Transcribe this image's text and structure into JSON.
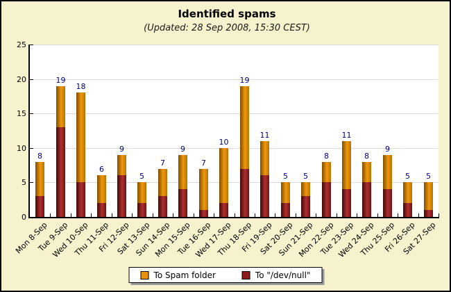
{
  "title": "Identified spams",
  "subtitle": "(Updated: 28 Sep 2008, 15:30 CEST)",
  "legend": {
    "items": [
      {
        "label": "To Spam folder",
        "swatch_color": "#E8910C"
      },
      {
        "label": "To \"/dev/null\"",
        "swatch_color": "#8E1B1B"
      }
    ]
  },
  "colors": {
    "background": "#F5F2CD",
    "plot_background": "#FFFFFF",
    "gridline": "#D9D9D9",
    "axis": "#000000",
    "value_label": "#000080",
    "spam_folder_bar": "#E8910C",
    "devnull_bar": "#8E1B1B"
  },
  "chart_data": {
    "type": "bar",
    "stacked": true,
    "title": "Identified spams",
    "subtitle": "(Updated: 28 Sep 2008, 15:30 CEST)",
    "xlabel": "",
    "ylabel": "",
    "ylim": [
      0,
      25
    ],
    "yticks": [
      0,
      5,
      10,
      15,
      20,
      25
    ],
    "grid": "horizontal",
    "legend_position": "bottom",
    "categories": [
      "Mon 8-Sep",
      "Tue 9-Sep",
      "Wed 10-Sep",
      "Thu 11-Sep",
      "Fri 12-Sep",
      "Sat 13-Sep",
      "Sun 14-Sep",
      "Mon 15-Sep",
      "Tue 16-Sep",
      "Wed 17-Sep",
      "Thu 18-Sep",
      "Fri 19-Sep",
      "Sat 20-Sep",
      "Sun 21-Sep",
      "Mon 22-Sep",
      "Tue 23-Sep",
      "Wed 24-Sep",
      "Thu 25-Sep",
      "Fri 26-Sep",
      "Sat 27-Sep"
    ],
    "series": [
      {
        "name": "To \"/dev/null\"",
        "values": [
          3,
          13,
          5,
          2,
          6,
          2,
          3,
          4,
          1,
          2,
          7,
          6,
          2,
          3,
          5,
          4,
          5,
          4,
          2,
          1
        ]
      },
      {
        "name": "To Spam folder",
        "values": [
          5,
          6,
          13,
          4,
          3,
          3,
          4,
          5,
          6,
          8,
          12,
          5,
          3,
          2,
          3,
          7,
          3,
          5,
          3,
          4
        ]
      }
    ],
    "totals": [
      8,
      19,
      18,
      6,
      9,
      5,
      7,
      9,
      7,
      10,
      19,
      11,
      5,
      5,
      8,
      11,
      8,
      9,
      5,
      5
    ]
  }
}
